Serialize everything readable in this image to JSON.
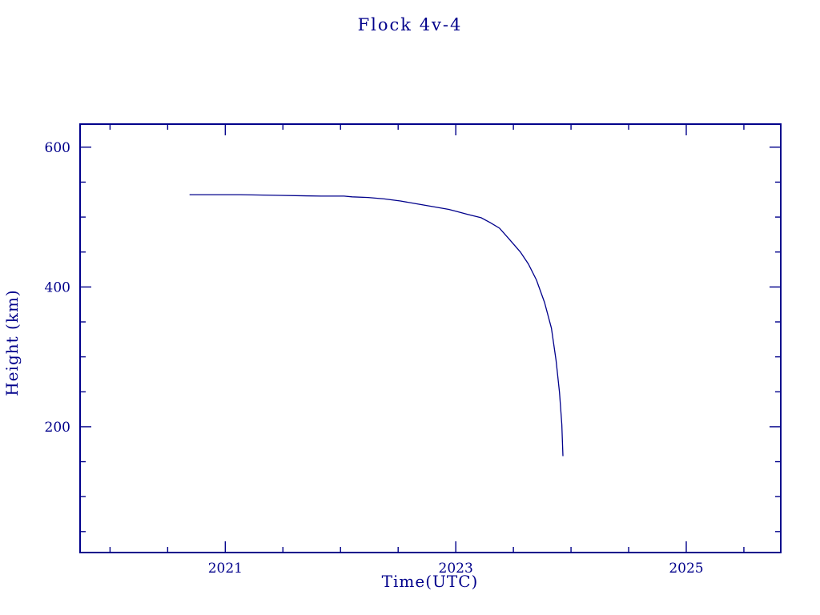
{
  "colors": {
    "accent": "#00008B",
    "background": "#FFFFFF"
  },
  "chart_data": {
    "type": "line",
    "title": "Flock 4v-4",
    "xlabel": "Time(UTC)",
    "ylabel": "Height (km)",
    "xlim": [
      2019.74,
      2025.82
    ],
    "ylim": [
      20,
      633
    ],
    "grid": false,
    "legend": "none",
    "line_color": "#00008B",
    "x_ticks": [
      {
        "value": 2021,
        "label": "2021"
      },
      {
        "value": 2023,
        "label": "2023"
      },
      {
        "value": 2025,
        "label": "2025"
      }
    ],
    "y_ticks": [
      {
        "value": 200,
        "label": "200"
      },
      {
        "value": 400,
        "label": "400"
      },
      {
        "value": 600,
        "label": "600"
      }
    ],
    "x_minor_step": 0.5,
    "y_minor_step": 50,
    "series": [
      {
        "name": "Flock 4v-4 height",
        "points": [
          [
            2020.69,
            532
          ],
          [
            2020.9,
            532
          ],
          [
            2021.13,
            532
          ],
          [
            2021.48,
            531
          ],
          [
            2021.83,
            530
          ],
          [
            2022.03,
            530
          ],
          [
            2022.1,
            529
          ],
          [
            2022.24,
            528
          ],
          [
            2022.38,
            526
          ],
          [
            2022.52,
            523
          ],
          [
            2022.66,
            519
          ],
          [
            2022.8,
            515
          ],
          [
            2022.94,
            511
          ],
          [
            2023.01,
            508
          ],
          [
            2023.1,
            504
          ],
          [
            2023.22,
            499
          ],
          [
            2023.3,
            492
          ],
          [
            2023.38,
            484
          ],
          [
            2023.46,
            469
          ],
          [
            2023.56,
            450
          ],
          [
            2023.63,
            433
          ],
          [
            2023.7,
            410
          ],
          [
            2023.77,
            378
          ],
          [
            2023.83,
            341
          ],
          [
            2023.87,
            295
          ],
          [
            2023.9,
            249
          ],
          [
            2023.92,
            203
          ],
          [
            2023.93,
            158
          ]
        ]
      }
    ]
  }
}
